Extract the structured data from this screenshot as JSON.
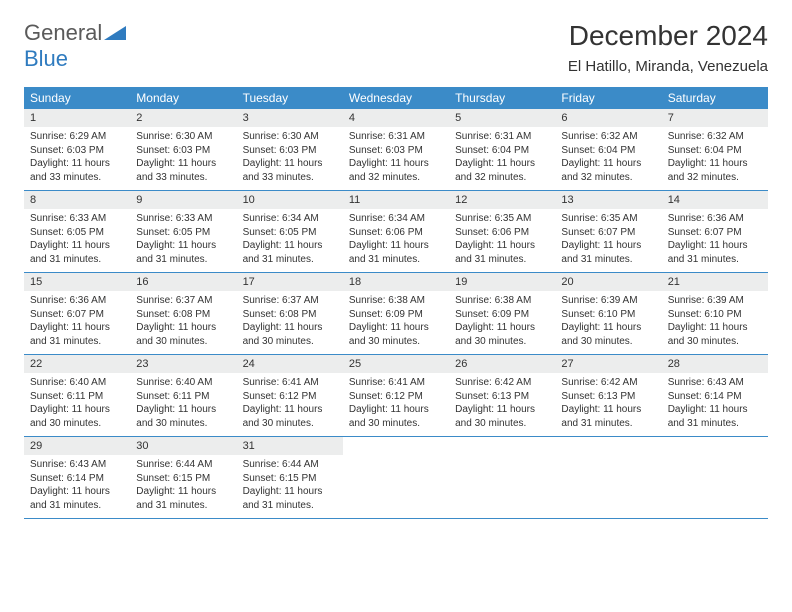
{
  "logo": {
    "general": "General",
    "blue": "Blue"
  },
  "title": "December 2024",
  "location": "El Hatillo, Miranda, Venezuela",
  "colors": {
    "header_bg": "#3b8bc8",
    "header_text": "#ffffff",
    "daynum_bg": "#eceded",
    "border": "#3b8bc8",
    "logo_gray": "#5a5a5a",
    "logo_blue": "#2f7bbf"
  },
  "fonts": {
    "title_size": 28,
    "location_size": 15,
    "dow_size": 12,
    "daynum_size": 11,
    "body_size": 10
  },
  "days_of_week": [
    "Sunday",
    "Monday",
    "Tuesday",
    "Wednesday",
    "Thursday",
    "Friday",
    "Saturday"
  ],
  "weeks": [
    [
      {
        "n": "1",
        "sr": "Sunrise: 6:29 AM",
        "ss": "Sunset: 6:03 PM",
        "dl": "Daylight: 11 hours and 33 minutes."
      },
      {
        "n": "2",
        "sr": "Sunrise: 6:30 AM",
        "ss": "Sunset: 6:03 PM",
        "dl": "Daylight: 11 hours and 33 minutes."
      },
      {
        "n": "3",
        "sr": "Sunrise: 6:30 AM",
        "ss": "Sunset: 6:03 PM",
        "dl": "Daylight: 11 hours and 33 minutes."
      },
      {
        "n": "4",
        "sr": "Sunrise: 6:31 AM",
        "ss": "Sunset: 6:03 PM",
        "dl": "Daylight: 11 hours and 32 minutes."
      },
      {
        "n": "5",
        "sr": "Sunrise: 6:31 AM",
        "ss": "Sunset: 6:04 PM",
        "dl": "Daylight: 11 hours and 32 minutes."
      },
      {
        "n": "6",
        "sr": "Sunrise: 6:32 AM",
        "ss": "Sunset: 6:04 PM",
        "dl": "Daylight: 11 hours and 32 minutes."
      },
      {
        "n": "7",
        "sr": "Sunrise: 6:32 AM",
        "ss": "Sunset: 6:04 PM",
        "dl": "Daylight: 11 hours and 32 minutes."
      }
    ],
    [
      {
        "n": "8",
        "sr": "Sunrise: 6:33 AM",
        "ss": "Sunset: 6:05 PM",
        "dl": "Daylight: 11 hours and 31 minutes."
      },
      {
        "n": "9",
        "sr": "Sunrise: 6:33 AM",
        "ss": "Sunset: 6:05 PM",
        "dl": "Daylight: 11 hours and 31 minutes."
      },
      {
        "n": "10",
        "sr": "Sunrise: 6:34 AM",
        "ss": "Sunset: 6:05 PM",
        "dl": "Daylight: 11 hours and 31 minutes."
      },
      {
        "n": "11",
        "sr": "Sunrise: 6:34 AM",
        "ss": "Sunset: 6:06 PM",
        "dl": "Daylight: 11 hours and 31 minutes."
      },
      {
        "n": "12",
        "sr": "Sunrise: 6:35 AM",
        "ss": "Sunset: 6:06 PM",
        "dl": "Daylight: 11 hours and 31 minutes."
      },
      {
        "n": "13",
        "sr": "Sunrise: 6:35 AM",
        "ss": "Sunset: 6:07 PM",
        "dl": "Daylight: 11 hours and 31 minutes."
      },
      {
        "n": "14",
        "sr": "Sunrise: 6:36 AM",
        "ss": "Sunset: 6:07 PM",
        "dl": "Daylight: 11 hours and 31 minutes."
      }
    ],
    [
      {
        "n": "15",
        "sr": "Sunrise: 6:36 AM",
        "ss": "Sunset: 6:07 PM",
        "dl": "Daylight: 11 hours and 31 minutes."
      },
      {
        "n": "16",
        "sr": "Sunrise: 6:37 AM",
        "ss": "Sunset: 6:08 PM",
        "dl": "Daylight: 11 hours and 30 minutes."
      },
      {
        "n": "17",
        "sr": "Sunrise: 6:37 AM",
        "ss": "Sunset: 6:08 PM",
        "dl": "Daylight: 11 hours and 30 minutes."
      },
      {
        "n": "18",
        "sr": "Sunrise: 6:38 AM",
        "ss": "Sunset: 6:09 PM",
        "dl": "Daylight: 11 hours and 30 minutes."
      },
      {
        "n": "19",
        "sr": "Sunrise: 6:38 AM",
        "ss": "Sunset: 6:09 PM",
        "dl": "Daylight: 11 hours and 30 minutes."
      },
      {
        "n": "20",
        "sr": "Sunrise: 6:39 AM",
        "ss": "Sunset: 6:10 PM",
        "dl": "Daylight: 11 hours and 30 minutes."
      },
      {
        "n": "21",
        "sr": "Sunrise: 6:39 AM",
        "ss": "Sunset: 6:10 PM",
        "dl": "Daylight: 11 hours and 30 minutes."
      }
    ],
    [
      {
        "n": "22",
        "sr": "Sunrise: 6:40 AM",
        "ss": "Sunset: 6:11 PM",
        "dl": "Daylight: 11 hours and 30 minutes."
      },
      {
        "n": "23",
        "sr": "Sunrise: 6:40 AM",
        "ss": "Sunset: 6:11 PM",
        "dl": "Daylight: 11 hours and 30 minutes."
      },
      {
        "n": "24",
        "sr": "Sunrise: 6:41 AM",
        "ss": "Sunset: 6:12 PM",
        "dl": "Daylight: 11 hours and 30 minutes."
      },
      {
        "n": "25",
        "sr": "Sunrise: 6:41 AM",
        "ss": "Sunset: 6:12 PM",
        "dl": "Daylight: 11 hours and 30 minutes."
      },
      {
        "n": "26",
        "sr": "Sunrise: 6:42 AM",
        "ss": "Sunset: 6:13 PM",
        "dl": "Daylight: 11 hours and 30 minutes."
      },
      {
        "n": "27",
        "sr": "Sunrise: 6:42 AM",
        "ss": "Sunset: 6:13 PM",
        "dl": "Daylight: 11 hours and 31 minutes."
      },
      {
        "n": "28",
        "sr": "Sunrise: 6:43 AM",
        "ss": "Sunset: 6:14 PM",
        "dl": "Daylight: 11 hours and 31 minutes."
      }
    ],
    [
      {
        "n": "29",
        "sr": "Sunrise: 6:43 AM",
        "ss": "Sunset: 6:14 PM",
        "dl": "Daylight: 11 hours and 31 minutes."
      },
      {
        "n": "30",
        "sr": "Sunrise: 6:44 AM",
        "ss": "Sunset: 6:15 PM",
        "dl": "Daylight: 11 hours and 31 minutes."
      },
      {
        "n": "31",
        "sr": "Sunrise: 6:44 AM",
        "ss": "Sunset: 6:15 PM",
        "dl": "Daylight: 11 hours and 31 minutes."
      },
      null,
      null,
      null,
      null
    ]
  ]
}
